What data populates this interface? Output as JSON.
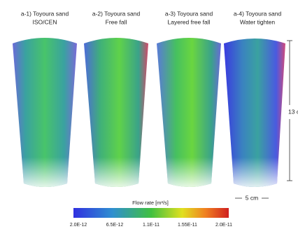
{
  "panels": [
    {
      "label": "a-1) Toyoura sand",
      "condition": "ISO/CEN"
    },
    {
      "label": "a-2) Toyoura sand",
      "condition": "Free fall"
    },
    {
      "label": "a-3) Toyoura sand",
      "condition": "Layered free fall"
    },
    {
      "label": "a-4) Toyoura sand",
      "condition": "Water tighten"
    }
  ],
  "height_label": "13 c",
  "width_label": "5 cm",
  "colorbar": {
    "title": "Flow rate [m³/s]",
    "ticks": [
      "2.0E-12",
      "6.5E-12",
      "1.1E-11",
      "1.55E-11",
      "2.0E-11"
    ]
  }
}
